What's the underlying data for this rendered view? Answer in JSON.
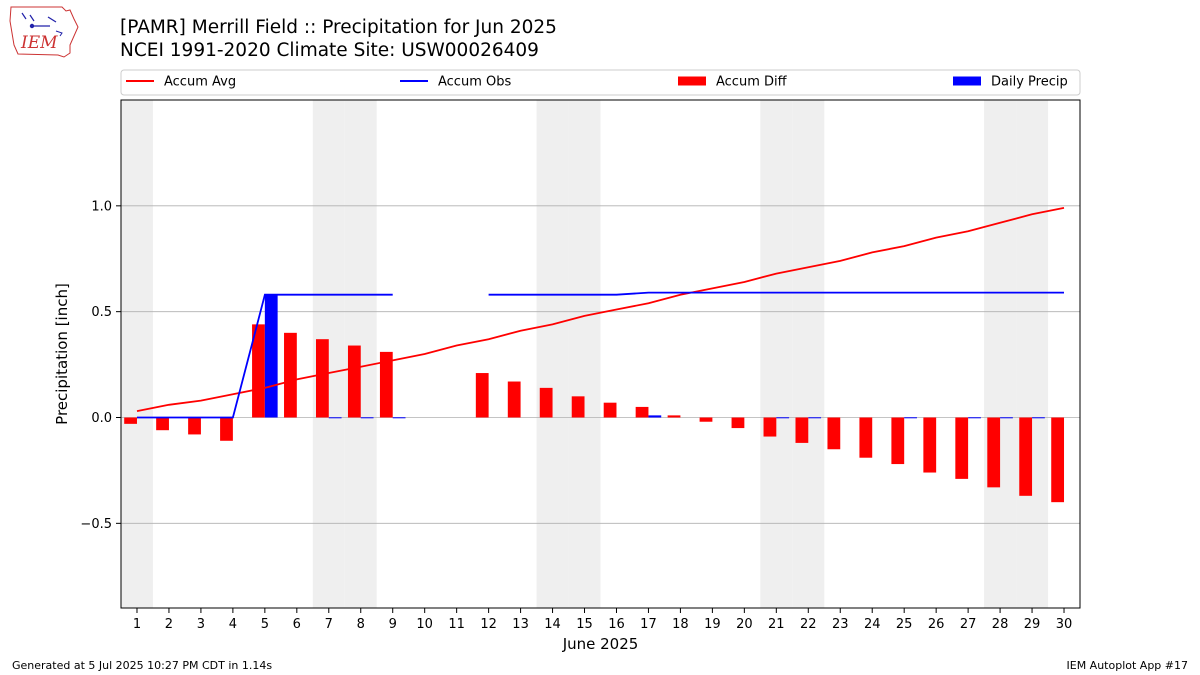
{
  "logo": {
    "text": "IEM"
  },
  "header": {
    "title_line1": "[PAMR] Merrill Field :: Precipitation for Jun 2025",
    "title_line2": "NCEI 1991-2020 Climate Site: USW00026409"
  },
  "footer": {
    "left": "Generated at 5 Jul 2025 10:27 PM CDT in 1.14s",
    "right": "IEM Autoplot App #17"
  },
  "colors": {
    "avg": "#ff0000",
    "obs": "#0000ff",
    "diff": "#ff0000",
    "precip": "#0000ff",
    "weekend": "#efefef",
    "grid": "#b0b0b0"
  },
  "chart_data": {
    "type": "bar",
    "xlabel": "June 2025",
    "ylabel": "Precipitation [inch]",
    "ylim": [
      -0.9,
      1.5
    ],
    "yticks": [
      -0.5,
      0.0,
      0.5,
      1.0
    ],
    "ytick_labels": [
      "−0.5",
      "0.0",
      "0.5",
      "1.0"
    ],
    "x": [
      1,
      2,
      3,
      4,
      5,
      6,
      7,
      8,
      9,
      10,
      11,
      12,
      13,
      14,
      15,
      16,
      17,
      18,
      19,
      20,
      21,
      22,
      23,
      24,
      25,
      26,
      27,
      28,
      29,
      30
    ],
    "grid": "horizontal",
    "legend_position": "top",
    "weekend_days": [
      1,
      7,
      8,
      14,
      15,
      21,
      22,
      28,
      29
    ],
    "legend": [
      {
        "label": "Accum Avg",
        "kind": "line",
        "color": "#ff0000"
      },
      {
        "label": "Accum Obs",
        "kind": "line",
        "color": "#0000ff"
      },
      {
        "label": "Accum Diff",
        "kind": "bar",
        "color": "#ff0000"
      },
      {
        "label": "Daily Precip",
        "kind": "bar",
        "color": "#0000ff"
      }
    ],
    "series": [
      {
        "name": "Accum Avg",
        "type": "line",
        "values": [
          0.03,
          0.06,
          0.08,
          0.11,
          0.14,
          0.18,
          0.21,
          0.24,
          0.27,
          0.3,
          0.34,
          0.37,
          0.41,
          0.44,
          0.48,
          0.51,
          0.54,
          0.58,
          0.61,
          0.64,
          0.68,
          0.71,
          0.74,
          0.78,
          0.81,
          0.85,
          0.88,
          0.92,
          0.96,
          0.99
        ]
      },
      {
        "name": "Accum Obs",
        "type": "line",
        "values": [
          0.0,
          0.0,
          0.0,
          0.0,
          0.58,
          0.58,
          0.58,
          0.58,
          0.58,
          null,
          null,
          0.58,
          0.58,
          0.58,
          0.58,
          0.58,
          0.59,
          0.59,
          0.59,
          0.59,
          0.59,
          0.59,
          0.59,
          0.59,
          0.59,
          0.59,
          0.59,
          0.59,
          0.59,
          0.59
        ]
      },
      {
        "name": "Accum Diff",
        "type": "bar",
        "values": [
          -0.03,
          -0.06,
          -0.08,
          -0.11,
          0.44,
          0.4,
          0.37,
          0.34,
          0.31,
          null,
          null,
          0.21,
          0.17,
          0.14,
          0.1,
          0.07,
          0.05,
          0.01,
          -0.02,
          -0.05,
          -0.09,
          -0.12,
          -0.15,
          -0.19,
          -0.22,
          -0.26,
          -0.29,
          -0.33,
          -0.37,
          -0.4
        ]
      },
      {
        "name": "Daily Precip",
        "type": "bar",
        "values": [
          0,
          0,
          0,
          0,
          0.58,
          0,
          0.001,
          0.001,
          0.001,
          null,
          null,
          0,
          0,
          0,
          0,
          0,
          0.01,
          0,
          0,
          0,
          0.001,
          0.001,
          0,
          0,
          0.001,
          0,
          0.001,
          0.001,
          0.001,
          0
        ]
      }
    ]
  }
}
